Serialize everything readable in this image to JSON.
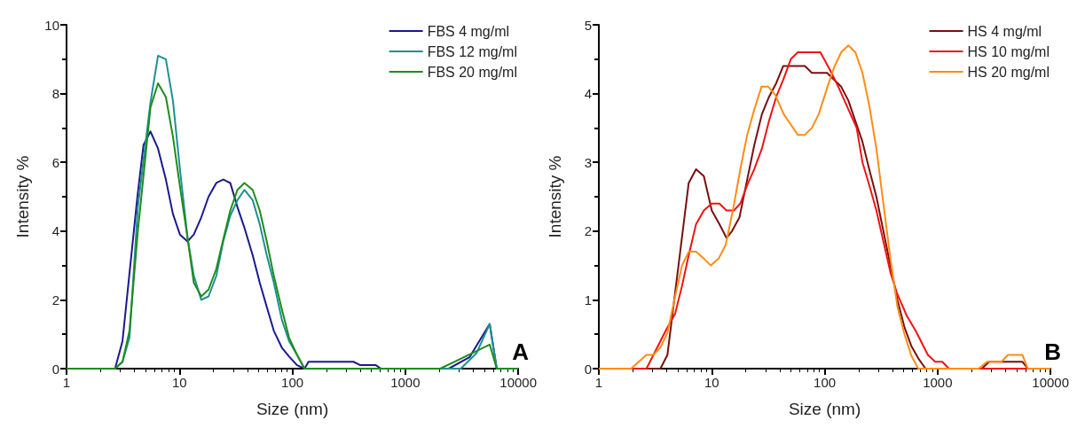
{
  "chart_data": [
    {
      "type": "line",
      "xlabel": "Size (nm)",
      "ylabel": "Intensity %",
      "annotations": [
        "A"
      ],
      "log": "x",
      "xlim": [
        1,
        10000
      ],
      "xticks": [
        1,
        10,
        100,
        1000,
        10000
      ],
      "ylim": [
        0,
        10
      ],
      "yticks": [
        0,
        2,
        4,
        6,
        8,
        10
      ],
      "legend": "top right",
      "grid": false,
      "marker": "none",
      "line_style": "solid",
      "series": [
        {
          "name": "FBS 4 mg/ml",
          "color": "#1a1a8c",
          "x": [
            1,
            2.69,
            3.13,
            4.24,
            4.8,
            5.54,
            6.46,
            7.58,
            8.75,
            10.1,
            11.8,
            13.4,
            15.6,
            18.1,
            21.2,
            24.4,
            28.2,
            32.6,
            37.6,
            44.5,
            51.4,
            59.3,
            68.5,
            81,
            93.5,
            110,
            128,
            139,
            347,
            400,
            548,
            610,
            2420,
            3700,
            5590,
            6450,
            10000
          ],
          "values": [
            0,
            0,
            0.8,
            5.0,
            6.5,
            6.9,
            6.4,
            5.5,
            4.5,
            3.9,
            3.7,
            3.9,
            4.4,
            5.0,
            5.4,
            5.5,
            5.4,
            4.7,
            4.1,
            3.3,
            2.5,
            1.8,
            1.1,
            0.6,
            0.35,
            0.1,
            0,
            0.2,
            0.2,
            0.1,
            0.1,
            0,
            0,
            0.33,
            1.3,
            0,
            0
          ]
        },
        {
          "name": "FBS 12 mg/ml",
          "color": "#1f9090",
          "x": [
            1,
            2.69,
            3.13,
            3.61,
            4.28,
            5.54,
            6.46,
            7.58,
            8.75,
            10.1,
            11.8,
            13.4,
            15.6,
            18.1,
            21.2,
            24.4,
            28.2,
            32.6,
            37.6,
            44.5,
            51.4,
            59.3,
            68.5,
            81,
            93.5,
            110,
            128,
            3100,
            4270,
            5590,
            6450,
            10000
          ],
          "values": [
            0,
            0,
            0.2,
            0.9,
            4.7,
            7.75,
            9.1,
            9.0,
            7.8,
            5.8,
            3.8,
            2.7,
            2.0,
            2.1,
            2.7,
            3.7,
            4.45,
            4.9,
            5.2,
            4.9,
            4.2,
            3.3,
            2.5,
            1.4,
            0.8,
            0.4,
            0,
            0,
            0.45,
            1.3,
            0,
            0
          ]
        },
        {
          "name": "FBS 20 mg/ml",
          "color": "#1e8c1e",
          "x": [
            1,
            2.69,
            3.13,
            3.61,
            4.28,
            5.54,
            6.46,
            7.58,
            8.75,
            10.1,
            11.8,
            13.4,
            15.6,
            18.1,
            21.2,
            24.4,
            28.2,
            32.6,
            37.6,
            44.5,
            51.4,
            59.3,
            68.5,
            81,
            93.5,
            110,
            128,
            2040,
            5590,
            6450,
            10000
          ],
          "values": [
            0,
            0,
            0.2,
            1.1,
            4.0,
            7.6,
            8.3,
            7.9,
            6.75,
            5.3,
            3.8,
            2.5,
            2.1,
            2.3,
            2.9,
            3.75,
            4.6,
            5.2,
            5.4,
            5.2,
            4.6,
            3.7,
            2.7,
            1.7,
            0.9,
            0.4,
            0,
            0,
            0.7,
            0,
            0
          ]
        }
      ]
    },
    {
      "type": "line",
      "xlabel": "Size (nm)",
      "ylabel": "Intensity %",
      "annotations": [
        "B"
      ],
      "log": "x",
      "xlim": [
        1,
        10000
      ],
      "xticks": [
        1,
        10,
        100,
        1000,
        10000
      ],
      "ylim": [
        0,
        5
      ],
      "yticks": [
        0,
        1,
        2,
        3,
        4,
        5
      ],
      "legend": "top right",
      "grid": false,
      "marker": "none",
      "line_style": "solid",
      "series": [
        {
          "name": "HS 4 mg/ml",
          "color": "#7a0f0f",
          "x": [
            1,
            3.51,
            4.05,
            6.25,
            7.26,
            8.51,
            10,
            11.7,
            13.5,
            15.1,
            17.6,
            20.6,
            23.8,
            27.8,
            32.1,
            37.2,
            42.9,
            50.1,
            66.8,
            77,
            105,
            140,
            162,
            187,
            216,
            248,
            287,
            331,
            382,
            441,
            509,
            585,
            674,
            782,
            2460,
            2860,
            5630,
            6290,
            10000
          ],
          "values": [
            0,
            0,
            0.2,
            2.7,
            2.9,
            2.8,
            2.3,
            2.1,
            1.9,
            2.0,
            2.2,
            2.75,
            3.25,
            3.7,
            3.95,
            4.15,
            4.4,
            4.4,
            4.4,
            4.3,
            4.3,
            4.1,
            3.9,
            3.6,
            3.3,
            2.9,
            2.5,
            2.0,
            1.5,
            1.0,
            0.6,
            0.33,
            0.15,
            0,
            0,
            0.1,
            0.1,
            0,
            0
          ]
        },
        {
          "name": "HS 10 mg/ml",
          "color": "#f01414",
          "x": [
            1,
            2.64,
            3.51,
            4.05,
            4.74,
            5.45,
            6.25,
            7.26,
            8.51,
            10,
            11.7,
            13.5,
            15.7,
            17.9,
            20.6,
            23.8,
            27.8,
            32.1,
            37.2,
            42.9,
            50.1,
            57.8,
            91.6,
            111,
            132,
            192,
            216,
            248,
            287,
            331,
            382,
            441,
            533,
            639,
            820,
            952,
            1100,
            1260,
            10000
          ],
          "values": [
            0,
            0,
            0.4,
            0.6,
            0.8,
            1.2,
            1.65,
            2.1,
            2.3,
            2.4,
            2.4,
            2.3,
            2.3,
            2.4,
            2.67,
            2.9,
            3.2,
            3.6,
            3.95,
            4.2,
            4.5,
            4.6,
            4.6,
            4.35,
            4.1,
            3.5,
            3.0,
            2.67,
            2.3,
            1.85,
            1.4,
            1.08,
            0.77,
            0.55,
            0.2,
            0.1,
            0.1,
            0,
            0
          ]
        },
        {
          "name": "HS 20 mg/ml",
          "color": "#ff8c14",
          "x": [
            1,
            1.93,
            2.64,
            3.04,
            3.51,
            4.05,
            4.74,
            5.45,
            6.25,
            7.26,
            8.51,
            9.8,
            11.5,
            13.3,
            15.5,
            17.9,
            20.6,
            23.8,
            27.6,
            31.7,
            36.5,
            43.4,
            50.1,
            57.8,
            66.8,
            77,
            88.6,
            105,
            121,
            140,
            162,
            187,
            216,
            248,
            287,
            331,
            382,
            441,
            509,
            585,
            674,
            2310,
            2740,
            3670,
            4200,
            5630,
            6290,
            10000
          ],
          "values": [
            0,
            0,
            0.2,
            0.2,
            0.31,
            0.52,
            1.05,
            1.5,
            1.7,
            1.7,
            1.6,
            1.5,
            1.6,
            1.8,
            2.33,
            2.9,
            3.4,
            3.77,
            4.1,
            4.1,
            3.98,
            3.7,
            3.55,
            3.4,
            3.4,
            3.5,
            3.7,
            4.08,
            4.38,
            4.6,
            4.7,
            4.6,
            4.3,
            3.83,
            3.2,
            2.4,
            1.6,
            0.9,
            0.5,
            0.19,
            0,
            0,
            0.1,
            0.1,
            0.2,
            0.2,
            0,
            0
          ]
        }
      ]
    }
  ]
}
